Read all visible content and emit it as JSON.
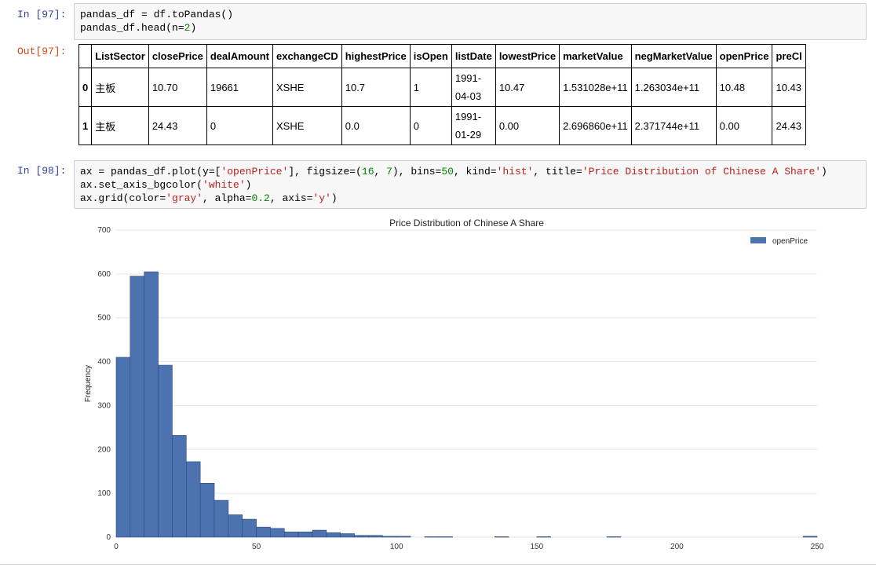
{
  "cells": {
    "c97": {
      "in_prompt": "In [97]:",
      "out_prompt": "Out[97]:",
      "code_line1": "pandas_df = df.toPandas()",
      "code_line2": "pandas_df.head(n=2)"
    },
    "c98": {
      "in_prompt": "In [98]:",
      "code_line1": "ax = pandas_df.plot(y=['openPrice'], figsize=(16, 7), bins=50, kind='hist', title='Price Distribution of Chinese A Share')",
      "code_line2": "ax.set_axis_bgcolor('white')",
      "code_line3": "ax.grid(color='gray', alpha=0.2, axis='y')"
    }
  },
  "table": {
    "columns": [
      "ListSector",
      "closePrice",
      "dealAmount",
      "exchangeCD",
      "highestPrice",
      "isOpen",
      "listDate",
      "lowestPrice",
      "marketValue",
      "negMarketValue",
      "openPrice",
      "preCl"
    ],
    "rows": [
      {
        "index": "0",
        "cells": [
          "主板",
          "10.70",
          "19661",
          "XSHE",
          "10.7",
          "1",
          "1991-04-03",
          "10.47",
          "1.531028e+11",
          "1.263034e+11",
          "10.48",
          "10.43"
        ]
      },
      {
        "index": "1",
        "cells": [
          "主板",
          "24.43",
          "0",
          "XSHE",
          "0.0",
          "0",
          "1991-01-29",
          "0.00",
          "2.696860e+11",
          "2.371744e+11",
          "0.00",
          "24.43"
        ]
      }
    ]
  },
  "chart_data": {
    "type": "bar",
    "title": "Price Distribution of Chinese A Share",
    "xlabel": "",
    "ylabel": "Frequency",
    "xlim": [
      0,
      250
    ],
    "ylim": [
      0,
      700
    ],
    "xticks": [
      0,
      50,
      100,
      150,
      200,
      250
    ],
    "yticks": [
      0,
      100,
      200,
      300,
      400,
      500,
      600,
      700
    ],
    "bin_width": 5,
    "series": [
      {
        "name": "openPrice",
        "color": "#4c72b0",
        "bins": [
          {
            "x": 0,
            "y": 410
          },
          {
            "x": 5,
            "y": 595
          },
          {
            "x": 10,
            "y": 605
          },
          {
            "x": 15,
            "y": 392
          },
          {
            "x": 20,
            "y": 232
          },
          {
            "x": 25,
            "y": 172
          },
          {
            "x": 30,
            "y": 123
          },
          {
            "x": 35,
            "y": 84
          },
          {
            "x": 40,
            "y": 51
          },
          {
            "x": 45,
            "y": 41
          },
          {
            "x": 50,
            "y": 23
          },
          {
            "x": 55,
            "y": 20
          },
          {
            "x": 60,
            "y": 12
          },
          {
            "x": 65,
            "y": 12
          },
          {
            "x": 70,
            "y": 16
          },
          {
            "x": 75,
            "y": 10
          },
          {
            "x": 80,
            "y": 8
          },
          {
            "x": 85,
            "y": 4
          },
          {
            "x": 90,
            "y": 4
          },
          {
            "x": 95,
            "y": 2
          },
          {
            "x": 100,
            "y": 2
          },
          {
            "x": 110,
            "y": 1
          },
          {
            "x": 115,
            "y": 1
          },
          {
            "x": 135,
            "y": 1
          },
          {
            "x": 150,
            "y": 1
          },
          {
            "x": 175,
            "y": 1
          },
          {
            "x": 245,
            "y": 2
          }
        ]
      }
    ],
    "legend": "top-right",
    "grid": "y",
    "background": "#ffffff",
    "grid_color": "#e6e6e6"
  }
}
